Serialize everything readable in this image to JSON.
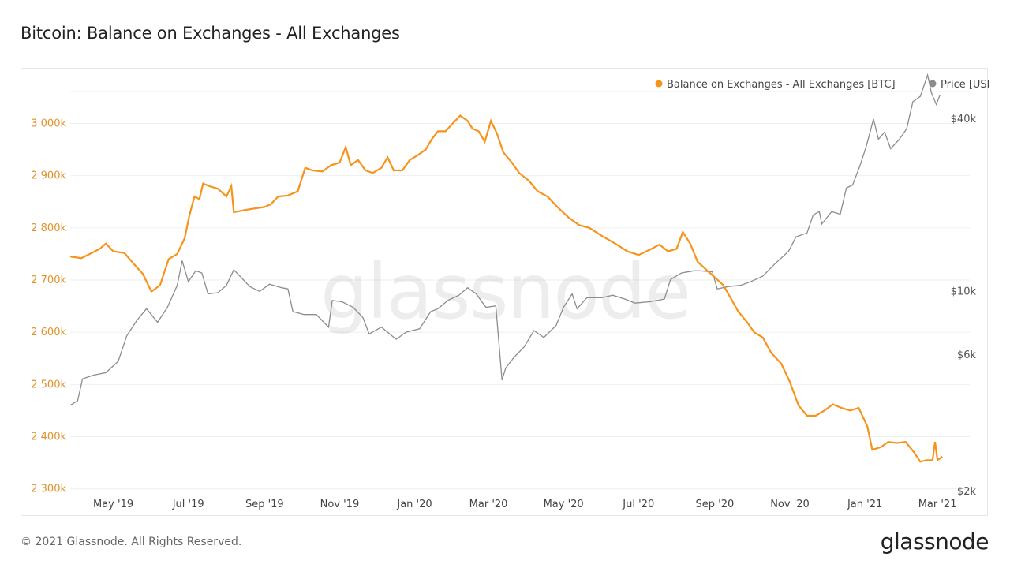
{
  "header": {
    "title": "Bitcoin: Balance on Exchanges - All Exchanges"
  },
  "footer": {
    "copyright": "© 2021 Glassnode. All Rights Reserved.",
    "logo_text": "glassnode"
  },
  "watermark": "glassnode",
  "colors": {
    "balance": "#f7931a",
    "price": "#8c8c8c",
    "grid": "#efefef",
    "left_axis_text": "#e0922c"
  },
  "chart_data": {
    "type": "line",
    "title": "Bitcoin: Balance on Exchanges - All Exchanges",
    "legend_placement": "top-right",
    "grid": true,
    "x_range": [
      "2019-03-27",
      "2021-03-08"
    ],
    "x_ticks": [
      "May '19",
      "Jul '19",
      "Sep '19",
      "Nov '19",
      "Jan '20",
      "Mar '20",
      "May '20",
      "Jul '20",
      "Sep '20",
      "Nov '20",
      "Jan '21",
      "Mar '21"
    ],
    "x_tick_dates": [
      "2019-05-01",
      "2019-07-01",
      "2019-09-01",
      "2019-11-01",
      "2020-01-01",
      "2020-03-01",
      "2020-05-01",
      "2020-07-01",
      "2020-09-01",
      "2020-11-01",
      "2021-01-01",
      "2021-03-01"
    ],
    "y_left": {
      "unit": "BTC",
      "range": [
        2295000,
        3105000
      ],
      "ticks": [
        2300000,
        2400000,
        2500000,
        2600000,
        2700000,
        2800000,
        2900000,
        3000000
      ],
      "tick_labels": [
        "2 300k",
        "2 400k",
        "2 500k",
        "2 600k",
        "2 700k",
        "2 800k",
        "2 900k",
        "3 000k"
      ]
    },
    "y_right": {
      "unit": "USD",
      "scale": "log",
      "range": [
        2000,
        60000
      ],
      "ticks": [
        2000,
        6000,
        10000,
        40000
      ],
      "tick_labels": [
        "$2k",
        "$6k",
        "$10k",
        "$40k"
      ]
    },
    "series": [
      {
        "name": "Balance on Exchanges - All Exchanges [BTC]",
        "axis": "left",
        "points": [
          [
            "2019-03-27",
            2745000
          ],
          [
            "2019-04-05",
            2742000
          ],
          [
            "2019-04-12",
            2750000
          ],
          [
            "2019-04-20",
            2760000
          ],
          [
            "2019-04-25",
            2770000
          ],
          [
            "2019-05-01",
            2755000
          ],
          [
            "2019-05-10",
            2752000
          ],
          [
            "2019-05-18",
            2730000
          ],
          [
            "2019-05-25",
            2712000
          ],
          [
            "2019-06-01",
            2678000
          ],
          [
            "2019-06-08",
            2690000
          ],
          [
            "2019-06-15",
            2740000
          ],
          [
            "2019-06-22",
            2750000
          ],
          [
            "2019-06-28",
            2780000
          ],
          [
            "2019-07-02",
            2825000
          ],
          [
            "2019-07-06",
            2860000
          ],
          [
            "2019-07-10",
            2855000
          ],
          [
            "2019-07-13",
            2885000
          ],
          [
            "2019-07-18",
            2880000
          ],
          [
            "2019-07-25",
            2875000
          ],
          [
            "2019-08-01",
            2860000
          ],
          [
            "2019-08-05",
            2880000
          ],
          [
            "2019-08-07",
            2830000
          ],
          [
            "2019-08-18",
            2835000
          ],
          [
            "2019-09-01",
            2840000
          ],
          [
            "2019-09-06",
            2845000
          ],
          [
            "2019-09-12",
            2860000
          ],
          [
            "2019-09-20",
            2862000
          ],
          [
            "2019-09-28",
            2870000
          ],
          [
            "2019-10-04",
            2915000
          ],
          [
            "2019-10-10",
            2910000
          ],
          [
            "2019-10-18",
            2908000
          ],
          [
            "2019-10-25",
            2920000
          ],
          [
            "2019-11-01",
            2925000
          ],
          [
            "2019-11-06",
            2955000
          ],
          [
            "2019-11-10",
            2920000
          ],
          [
            "2019-11-16",
            2930000
          ],
          [
            "2019-11-22",
            2910000
          ],
          [
            "2019-11-28",
            2905000
          ],
          [
            "2019-12-05",
            2915000
          ],
          [
            "2019-12-10",
            2935000
          ],
          [
            "2019-12-15",
            2910000
          ],
          [
            "2019-12-22",
            2910000
          ],
          [
            "2019-12-28",
            2930000
          ],
          [
            "2020-01-04",
            2940000
          ],
          [
            "2020-01-10",
            2950000
          ],
          [
            "2020-01-15",
            2970000
          ],
          [
            "2020-01-20",
            2985000
          ],
          [
            "2020-01-26",
            2985000
          ],
          [
            "2020-02-01",
            3000000
          ],
          [
            "2020-02-07",
            3015000
          ],
          [
            "2020-02-13",
            3005000
          ],
          [
            "2020-02-17",
            2990000
          ],
          [
            "2020-02-22",
            2985000
          ],
          [
            "2020-02-27",
            2965000
          ],
          [
            "2020-03-03",
            3005000
          ],
          [
            "2020-03-08",
            2980000
          ],
          [
            "2020-03-13",
            2945000
          ],
          [
            "2020-03-20",
            2925000
          ],
          [
            "2020-03-26",
            2905000
          ],
          [
            "2020-04-03",
            2890000
          ],
          [
            "2020-04-10",
            2870000
          ],
          [
            "2020-04-18",
            2860000
          ],
          [
            "2020-04-26",
            2840000
          ],
          [
            "2020-05-05",
            2820000
          ],
          [
            "2020-05-14",
            2805000
          ],
          [
            "2020-05-22",
            2800000
          ],
          [
            "2020-06-01",
            2785000
          ],
          [
            "2020-06-12",
            2770000
          ],
          [
            "2020-06-22",
            2755000
          ],
          [
            "2020-07-01",
            2748000
          ],
          [
            "2020-07-10",
            2758000
          ],
          [
            "2020-07-18",
            2768000
          ],
          [
            "2020-07-25",
            2755000
          ],
          [
            "2020-08-01",
            2760000
          ],
          [
            "2020-08-06",
            2792000
          ],
          [
            "2020-08-12",
            2770000
          ],
          [
            "2020-08-18",
            2735000
          ],
          [
            "2020-08-25",
            2720000
          ],
          [
            "2020-09-01",
            2705000
          ],
          [
            "2020-09-08",
            2690000
          ],
          [
            "2020-09-14",
            2665000
          ],
          [
            "2020-09-20",
            2640000
          ],
          [
            "2020-09-27",
            2620000
          ],
          [
            "2020-10-03",
            2600000
          ],
          [
            "2020-10-10",
            2590000
          ],
          [
            "2020-10-17",
            2560000
          ],
          [
            "2020-10-25",
            2540000
          ],
          [
            "2020-11-01",
            2505000
          ],
          [
            "2020-11-08",
            2460000
          ],
          [
            "2020-11-15",
            2440000
          ],
          [
            "2020-11-22",
            2440000
          ],
          [
            "2020-11-29",
            2450000
          ],
          [
            "2020-12-06",
            2462000
          ],
          [
            "2020-12-13",
            2455000
          ],
          [
            "2020-12-20",
            2450000
          ],
          [
            "2020-12-27",
            2455000
          ],
          [
            "2021-01-03",
            2420000
          ],
          [
            "2021-01-07",
            2375000
          ],
          [
            "2021-01-14",
            2380000
          ],
          [
            "2021-01-20",
            2390000
          ],
          [
            "2021-01-27",
            2388000
          ],
          [
            "2021-02-03",
            2390000
          ],
          [
            "2021-02-10",
            2370000
          ],
          [
            "2021-02-15",
            2352000
          ],
          [
            "2021-02-20",
            2355000
          ],
          [
            "2021-02-25",
            2355000
          ],
          [
            "2021-02-27",
            2390000
          ],
          [
            "2021-03-01",
            2355000
          ],
          [
            "2021-03-05",
            2362000
          ]
        ]
      },
      {
        "name": "Price [USD]",
        "axis": "right",
        "points": [
          [
            "2019-03-27",
            4000
          ],
          [
            "2019-04-02",
            4150
          ],
          [
            "2019-04-06",
            4950
          ],
          [
            "2019-04-15",
            5100
          ],
          [
            "2019-04-25",
            5200
          ],
          [
            "2019-05-05",
            5700
          ],
          [
            "2019-05-12",
            7000
          ],
          [
            "2019-05-20",
            7900
          ],
          [
            "2019-05-28",
            8700
          ],
          [
            "2019-06-06",
            7800
          ],
          [
            "2019-06-14",
            8800
          ],
          [
            "2019-06-22",
            10500
          ],
          [
            "2019-06-26",
            12800
          ],
          [
            "2019-07-01",
            10800
          ],
          [
            "2019-07-07",
            11800
          ],
          [
            "2019-07-12",
            11600
          ],
          [
            "2019-07-17",
            9800
          ],
          [
            "2019-07-25",
            9900
          ],
          [
            "2019-08-01",
            10500
          ],
          [
            "2019-08-07",
            11900
          ],
          [
            "2019-08-12",
            11300
          ],
          [
            "2019-08-20",
            10400
          ],
          [
            "2019-08-28",
            10000
          ],
          [
            "2019-09-05",
            10600
          ],
          [
            "2019-09-15",
            10300
          ],
          [
            "2019-09-20",
            10200
          ],
          [
            "2019-09-24",
            8500
          ],
          [
            "2019-10-03",
            8300
          ],
          [
            "2019-10-13",
            8300
          ],
          [
            "2019-10-23",
            7500
          ],
          [
            "2019-10-26",
            9300
          ],
          [
            "2019-11-03",
            9200
          ],
          [
            "2019-11-12",
            8800
          ],
          [
            "2019-11-20",
            8100
          ],
          [
            "2019-11-25",
            7100
          ],
          [
            "2019-12-05",
            7500
          ],
          [
            "2019-12-17",
            6800
          ],
          [
            "2019-12-25",
            7200
          ],
          [
            "2020-01-05",
            7400
          ],
          [
            "2020-01-14",
            8500
          ],
          [
            "2020-01-20",
            8700
          ],
          [
            "2020-01-28",
            9300
          ],
          [
            "2020-02-06",
            9700
          ],
          [
            "2020-02-13",
            10300
          ],
          [
            "2020-02-20",
            9800
          ],
          [
            "2020-02-28",
            8800
          ],
          [
            "2020-03-07",
            8900
          ],
          [
            "2020-03-12",
            4900
          ],
          [
            "2020-03-15",
            5400
          ],
          [
            "2020-03-22",
            5900
          ],
          [
            "2020-03-30",
            6400
          ],
          [
            "2020-04-07",
            7300
          ],
          [
            "2020-04-15",
            6900
          ],
          [
            "2020-04-25",
            7600
          ],
          [
            "2020-05-01",
            8800
          ],
          [
            "2020-05-08",
            9800
          ],
          [
            "2020-05-12",
            8700
          ],
          [
            "2020-05-20",
            9500
          ],
          [
            "2020-06-01",
            9500
          ],
          [
            "2020-06-10",
            9700
          ],
          [
            "2020-06-20",
            9400
          ],
          [
            "2020-06-28",
            9100
          ],
          [
            "2020-07-10",
            9200
          ],
          [
            "2020-07-22",
            9400
          ],
          [
            "2020-07-27",
            11000
          ],
          [
            "2020-08-05",
            11600
          ],
          [
            "2020-08-15",
            11800
          ],
          [
            "2020-08-20",
            11800
          ],
          [
            "2020-08-30",
            11700
          ],
          [
            "2020-09-03",
            10200
          ],
          [
            "2020-09-12",
            10400
          ],
          [
            "2020-09-22",
            10500
          ],
          [
            "2020-09-30",
            10800
          ],
          [
            "2020-10-10",
            11300
          ],
          [
            "2020-10-20",
            12500
          ],
          [
            "2020-10-31",
            13800
          ],
          [
            "2020-11-06",
            15500
          ],
          [
            "2020-11-15",
            16000
          ],
          [
            "2020-11-20",
            18500
          ],
          [
            "2020-11-25",
            19000
          ],
          [
            "2020-11-27",
            17200
          ],
          [
            "2020-12-05",
            19000
          ],
          [
            "2020-12-12",
            18600
          ],
          [
            "2020-12-17",
            23000
          ],
          [
            "2020-12-22",
            23500
          ],
          [
            "2020-12-28",
            27500
          ],
          [
            "2021-01-02",
            32000
          ],
          [
            "2021-01-08",
            40000
          ],
          [
            "2021-01-12",
            34000
          ],
          [
            "2021-01-17",
            36000
          ],
          [
            "2021-01-22",
            31500
          ],
          [
            "2021-01-29",
            34000
          ],
          [
            "2021-02-04",
            37000
          ],
          [
            "2021-02-09",
            46000
          ],
          [
            "2021-02-15",
            48000
          ],
          [
            "2021-02-21",
            57000
          ],
          [
            "2021-02-24",
            49500
          ],
          [
            "2021-02-28",
            45000
          ],
          [
            "2021-03-03",
            48500
          ]
        ]
      }
    ]
  }
}
